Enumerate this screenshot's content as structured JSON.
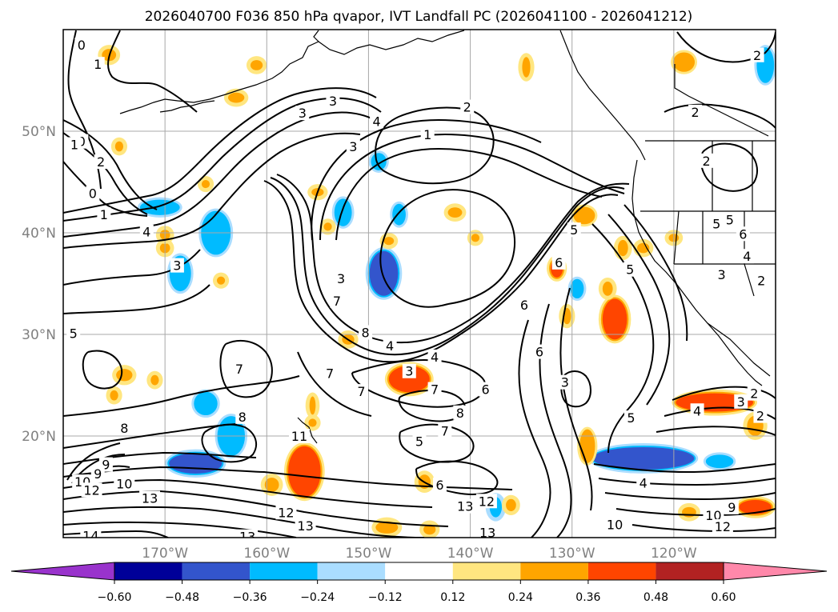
{
  "chart_data": {
    "type": "heatmap",
    "title": "2026040700 F036 850 hPa qvapor, IVT Landfall PC (2026041100 - 2026041212)",
    "map": {
      "lon_range": [
        -180,
        -110
      ],
      "lat_range": [
        10,
        60
      ],
      "grid": true,
      "x_ticks": [
        {
          "value": -170,
          "label": "170°W"
        },
        {
          "value": -160,
          "label": "160°W"
        },
        {
          "value": -150,
          "label": "150°W"
        },
        {
          "value": -140,
          "label": "140°W"
        },
        {
          "value": -130,
          "label": "130°W"
        },
        {
          "value": -120,
          "label": "120°W"
        }
      ],
      "y_ticks": [
        {
          "value": 20,
          "label": "20°N"
        },
        {
          "value": 30,
          "label": "30°N"
        },
        {
          "value": 40,
          "label": "40°N"
        },
        {
          "value": 50,
          "label": "50°N"
        }
      ]
    },
    "colorbar": {
      "orientation": "horizontal",
      "extend": "both",
      "boundaries": [
        -0.72,
        -0.6,
        -0.48,
        -0.36,
        -0.24,
        -0.12,
        0.12,
        0.24,
        0.36,
        0.48,
        0.6,
        0.72
      ],
      "colors": [
        "#9933cc",
        "#000099",
        "#3355cc",
        "#00bbff",
        "#aaddff",
        "#ffffff",
        "#ffe680",
        "#ffa500",
        "#ff4500",
        "#b22222",
        "#ff88aa"
      ],
      "tick_labels": [
        "−0.60",
        "−0.48",
        "−0.36",
        "−0.24",
        "−0.12",
        "0.12",
        "0.24",
        "0.36",
        "0.48",
        "0.60"
      ]
    },
    "shaded_regions": [
      {
        "lon": -148.5,
        "lat": 36,
        "rx": 1.4,
        "ry": 2.2,
        "value": -0.4
      },
      {
        "lon": -167,
        "lat": 17.3,
        "rx": 2.6,
        "ry": 1.0,
        "value": -0.4
      },
      {
        "lon": -123,
        "lat": 17.8,
        "rx": 5,
        "ry": 1.1,
        "value": -0.4
      },
      {
        "lon": -165,
        "lat": 40,
        "rx": 1.3,
        "ry": 2.0,
        "value": -0.3
      },
      {
        "lon": -170.5,
        "lat": 42.5,
        "rx": 1.8,
        "ry": 0.6,
        "value": -0.3
      },
      {
        "lon": -163.5,
        "lat": 20,
        "rx": 1.2,
        "ry": 1.8,
        "value": -0.3
      },
      {
        "lon": -166,
        "lat": 23.2,
        "rx": 1.0,
        "ry": 1.0,
        "value": -0.3
      },
      {
        "lon": -152.5,
        "lat": 42,
        "rx": 0.7,
        "ry": 1.2,
        "value": -0.3
      },
      {
        "lon": -147,
        "lat": 41.8,
        "rx": 0.5,
        "ry": 0.9,
        "value": -0.3
      },
      {
        "lon": -149,
        "lat": 47,
        "rx": 0.6,
        "ry": 0.7,
        "value": -0.3
      },
      {
        "lon": -168.5,
        "lat": 36,
        "rx": 0.9,
        "ry": 1.6,
        "value": -0.3
      },
      {
        "lon": -111,
        "lat": 56.5,
        "rx": 0.7,
        "ry": 1.6,
        "value": -0.3
      },
      {
        "lon": -129.5,
        "lat": 34.5,
        "rx": 0.5,
        "ry": 0.8,
        "value": -0.3
      },
      {
        "lon": -115.5,
        "lat": 17.5,
        "rx": 1.2,
        "ry": 0.5,
        "value": -0.3
      },
      {
        "lon": -137.5,
        "lat": 13,
        "rx": 0.6,
        "ry": 1.0,
        "value": -0.25
      },
      {
        "lon": -146,
        "lat": 25.6,
        "rx": 2.0,
        "ry": 1.3,
        "value": 0.36
      },
      {
        "lon": -156.3,
        "lat": 16.5,
        "rx": 1.6,
        "ry": 2.5,
        "value": 0.4
      },
      {
        "lon": -116,
        "lat": 23.3,
        "rx": 3.8,
        "ry": 0.9,
        "value": 0.4
      },
      {
        "lon": -125.8,
        "lat": 31.5,
        "rx": 1.2,
        "ry": 2.0,
        "value": 0.36
      },
      {
        "lon": -131.5,
        "lat": 36.5,
        "rx": 0.6,
        "ry": 0.9,
        "value": 0.36
      },
      {
        "lon": -112,
        "lat": 13,
        "rx": 1.6,
        "ry": 0.7,
        "value": 0.36
      },
      {
        "lon": -128.5,
        "lat": 19,
        "rx": 0.6,
        "ry": 1.5,
        "value": 0.3
      },
      {
        "lon": -119,
        "lat": 56.8,
        "rx": 0.9,
        "ry": 0.8,
        "value": 0.3
      },
      {
        "lon": -128.8,
        "lat": 41.7,
        "rx": 0.9,
        "ry": 0.7,
        "value": 0.3
      },
      {
        "lon": -141.5,
        "lat": 42,
        "rx": 0.7,
        "ry": 0.5,
        "value": 0.28
      },
      {
        "lon": -130.5,
        "lat": 31.8,
        "rx": 0.4,
        "ry": 0.8,
        "value": 0.28
      },
      {
        "lon": -126.5,
        "lat": 34.5,
        "rx": 0.5,
        "ry": 0.7,
        "value": 0.28
      },
      {
        "lon": -125,
        "lat": 38.5,
        "rx": 0.5,
        "ry": 0.8,
        "value": 0.28
      },
      {
        "lon": -123,
        "lat": 38.5,
        "rx": 0.6,
        "ry": 0.5,
        "value": 0.28
      },
      {
        "lon": -112,
        "lat": 21,
        "rx": 0.8,
        "ry": 1.0,
        "value": 0.28
      },
      {
        "lon": -118.5,
        "lat": 12.5,
        "rx": 0.7,
        "ry": 0.5,
        "value": 0.28
      },
      {
        "lon": -144.5,
        "lat": 15.5,
        "rx": 0.6,
        "ry": 0.7,
        "value": 0.28
      },
      {
        "lon": -159.5,
        "lat": 15.2,
        "rx": 0.7,
        "ry": 0.7,
        "value": 0.28
      },
      {
        "lon": -136,
        "lat": 13.2,
        "rx": 0.5,
        "ry": 0.6,
        "value": 0.28
      },
      {
        "lon": -148.2,
        "lat": 11,
        "rx": 1.1,
        "ry": 0.6,
        "value": 0.28
      },
      {
        "lon": -144,
        "lat": 10.8,
        "rx": 0.6,
        "ry": 0.5,
        "value": 0.28
      },
      {
        "lon": -175.5,
        "lat": 57.5,
        "rx": 0.7,
        "ry": 0.6,
        "value": 0.28
      },
      {
        "lon": -161,
        "lat": 56.5,
        "rx": 0.6,
        "ry": 0.5,
        "value": 0.24
      },
      {
        "lon": -163,
        "lat": 53.3,
        "rx": 0.8,
        "ry": 0.5,
        "value": 0.24
      },
      {
        "lon": -155.5,
        "lat": 23,
        "rx": 0.3,
        "ry": 0.9,
        "value": 0.28
      },
      {
        "lon": -155,
        "lat": 44,
        "rx": 0.6,
        "ry": 0.4,
        "value": 0.24
      },
      {
        "lon": -152,
        "lat": 29.5,
        "rx": 0.6,
        "ry": 0.5,
        "value": 0.24
      },
      {
        "lon": -155.5,
        "lat": 21.3,
        "rx": 0.4,
        "ry": 0.4,
        "value": 0.24
      },
      {
        "lon": -174,
        "lat": 26,
        "rx": 0.8,
        "ry": 0.6,
        "value": 0.24
      },
      {
        "lon": -171,
        "lat": 25.5,
        "rx": 0.4,
        "ry": 0.5,
        "value": 0.24
      },
      {
        "lon": -175,
        "lat": 24,
        "rx": 0.4,
        "ry": 0.5,
        "value": 0.24
      },
      {
        "lon": -170,
        "lat": 38.5,
        "rx": 0.5,
        "ry": 0.5,
        "value": 0.24
      },
      {
        "lon": -170,
        "lat": 39.8,
        "rx": 0.5,
        "ry": 0.5,
        "value": 0.24
      },
      {
        "lon": -164.5,
        "lat": 35.3,
        "rx": 0.4,
        "ry": 0.4,
        "value": 0.24
      },
      {
        "lon": -134.5,
        "lat": 56.3,
        "rx": 0.4,
        "ry": 1.0,
        "value": 0.24
      },
      {
        "lon": -174.5,
        "lat": 48.5,
        "rx": 0.4,
        "ry": 0.5,
        "value": 0.24
      },
      {
        "lon": -166,
        "lat": 44.8,
        "rx": 0.4,
        "ry": 0.4,
        "value": 0.24
      },
      {
        "lon": -139.5,
        "lat": 39.5,
        "rx": 0.4,
        "ry": 0.4,
        "value": 0.24
      },
      {
        "lon": -148,
        "lat": 39.2,
        "rx": 0.5,
        "ry": 0.4,
        "value": 0.24
      },
      {
        "lon": -154,
        "lat": 40.6,
        "rx": 0.4,
        "ry": 0.4,
        "value": 0.24
      },
      {
        "lon": -120,
        "lat": 39.5,
        "rx": 0.5,
        "ry": 0.4,
        "value": 0.24
      }
    ],
    "contour_labels": [
      {
        "lon": -178.2,
        "lat": 58.5,
        "text": "0"
      },
      {
        "lon": -176.6,
        "lat": 56.6,
        "text": "1"
      },
      {
        "lon": -178.2,
        "lat": 49,
        "text": "0"
      },
      {
        "lon": -178.9,
        "lat": 48.7,
        "text": "1"
      },
      {
        "lon": -176.3,
        "lat": 47,
        "text": "2"
      },
      {
        "lon": -177.1,
        "lat": 43.9,
        "text": "0"
      },
      {
        "lon": -176,
        "lat": 41.8,
        "text": "1"
      },
      {
        "lon": -171.8,
        "lat": 40.1,
        "text": "4"
      },
      {
        "lon": -168.8,
        "lat": 36.8,
        "text": "3"
      },
      {
        "lon": -156.5,
        "lat": 51.8,
        "text": "3"
      },
      {
        "lon": -153.5,
        "lat": 53,
        "text": "3"
      },
      {
        "lon": -151.5,
        "lat": 48.5,
        "text": "3"
      },
      {
        "lon": -149.2,
        "lat": 51,
        "text": "4"
      },
      {
        "lon": -144.2,
        "lat": 49.7,
        "text": "1"
      },
      {
        "lon": -140.3,
        "lat": 52.4,
        "text": "2"
      },
      {
        "lon": -117.9,
        "lat": 51.9,
        "text": "2"
      },
      {
        "lon": -111.8,
        "lat": 57.5,
        "text": "2"
      },
      {
        "lon": -116.8,
        "lat": 47.1,
        "text": "2"
      },
      {
        "lon": -114.5,
        "lat": 41.3,
        "text": "5"
      },
      {
        "lon": -113.2,
        "lat": 39.9,
        "text": "6"
      },
      {
        "lon": -115.8,
        "lat": 40.9,
        "text": "5"
      },
      {
        "lon": -112.8,
        "lat": 37.7,
        "text": "4"
      },
      {
        "lon": -115.3,
        "lat": 35.9,
        "text": "3"
      },
      {
        "lon": -111.4,
        "lat": 35.3,
        "text": "2"
      },
      {
        "lon": -131.3,
        "lat": 37.1,
        "text": "6"
      },
      {
        "lon": -129.8,
        "lat": 40.3,
        "text": "5"
      },
      {
        "lon": -124.3,
        "lat": 36.4,
        "text": "5"
      },
      {
        "lon": -134.7,
        "lat": 32.9,
        "text": "6"
      },
      {
        "lon": -133.2,
        "lat": 28.3,
        "text": "6"
      },
      {
        "lon": -130.7,
        "lat": 25.3,
        "text": "3"
      },
      {
        "lon": -138.5,
        "lat": 24.6,
        "text": "6"
      },
      {
        "lon": -141,
        "lat": 22.3,
        "text": "8"
      },
      {
        "lon": -142.5,
        "lat": 20.5,
        "text": "7"
      },
      {
        "lon": -145,
        "lat": 19.5,
        "text": "5"
      },
      {
        "lon": -143,
        "lat": 15.2,
        "text": "6"
      },
      {
        "lon": -143.5,
        "lat": 27.8,
        "text": "4"
      },
      {
        "lon": -146,
        "lat": 26.4,
        "text": "3"
      },
      {
        "lon": -143.5,
        "lat": 24.6,
        "text": "7"
      },
      {
        "lon": -147.9,
        "lat": 28.9,
        "text": "4"
      },
      {
        "lon": -150.3,
        "lat": 30.2,
        "text": "8"
      },
      {
        "lon": -152.7,
        "lat": 35.5,
        "text": "3"
      },
      {
        "lon": -153.1,
        "lat": 33.3,
        "text": "7"
      },
      {
        "lon": -153.8,
        "lat": 26.2,
        "text": "7"
      },
      {
        "lon": -150.7,
        "lat": 24.4,
        "text": "7"
      },
      {
        "lon": -162.7,
        "lat": 26.6,
        "text": "7"
      },
      {
        "lon": -162.4,
        "lat": 21.9,
        "text": "8"
      },
      {
        "lon": -156.8,
        "lat": 20,
        "text": "11"
      },
      {
        "lon": -174,
        "lat": 20.8,
        "text": "8"
      },
      {
        "lon": -175.8,
        "lat": 17.2,
        "text": "9"
      },
      {
        "lon": -176.6,
        "lat": 16.3,
        "text": "9"
      },
      {
        "lon": -178.1,
        "lat": 15.5,
        "text": "10"
      },
      {
        "lon": -177.2,
        "lat": 14.7,
        "text": "12"
      },
      {
        "lon": -174,
        "lat": 15.3,
        "text": "10"
      },
      {
        "lon": -171.5,
        "lat": 13.9,
        "text": "13"
      },
      {
        "lon": -177.3,
        "lat": 10.2,
        "text": "14"
      },
      {
        "lon": -158.1,
        "lat": 12.5,
        "text": "12"
      },
      {
        "lon": -156.2,
        "lat": 11.2,
        "text": "13"
      },
      {
        "lon": -161.9,
        "lat": 10.1,
        "text": "13"
      },
      {
        "lon": -140.5,
        "lat": 13.1,
        "text": "13"
      },
      {
        "lon": -138.4,
        "lat": 13.6,
        "text": "12"
      },
      {
        "lon": -138.3,
        "lat": 10.5,
        "text": "13"
      },
      {
        "lon": -125.8,
        "lat": 11.3,
        "text": "10"
      },
      {
        "lon": -116.1,
        "lat": 12.2,
        "text": "10"
      },
      {
        "lon": -114.3,
        "lat": 13,
        "text": "9"
      },
      {
        "lon": -115.2,
        "lat": 11.1,
        "text": "12"
      },
      {
        "lon": -123,
        "lat": 15.4,
        "text": "4"
      },
      {
        "lon": -124.2,
        "lat": 21.8,
        "text": "5"
      },
      {
        "lon": -117.7,
        "lat": 22.5,
        "text": "4"
      },
      {
        "lon": -113.4,
        "lat": 23.4,
        "text": "3"
      },
      {
        "lon": -112.1,
        "lat": 24.2,
        "text": "2"
      },
      {
        "lon": -111.5,
        "lat": 22,
        "text": "2"
      },
      {
        "lon": -179,
        "lat": 30.1,
        "text": "5"
      }
    ]
  }
}
